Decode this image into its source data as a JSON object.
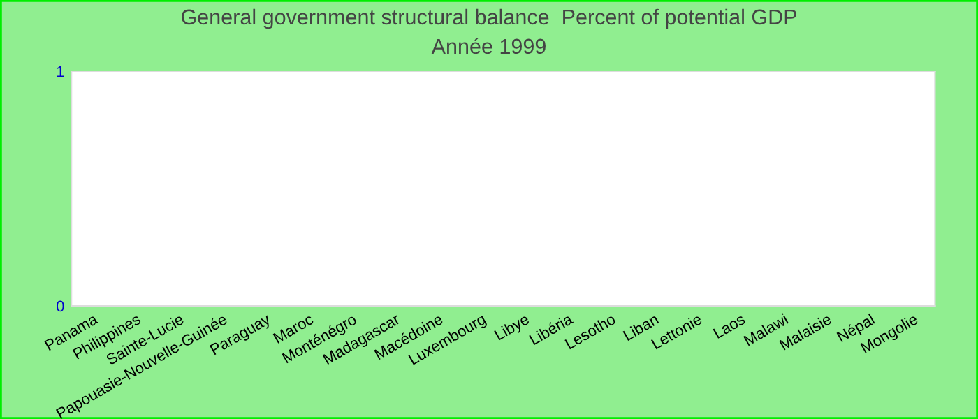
{
  "chart_data": {
    "type": "bar",
    "title": "General government structural balance  Percent of potential GDP",
    "subtitle": "Année 1999",
    "categories": [
      "Panama",
      "Philippines",
      "Sainte-Lucie",
      "Papouasie-Nouvelle-Guinée",
      "Paraguay",
      "Maroc",
      "Monténégro",
      "Madagascar",
      "Macédoine",
      "Luxembourg",
      "Libye",
      "Libéria",
      "Lesotho",
      "Liban",
      "Lettonie",
      "Laos",
      "Malawi",
      "Malaisie",
      "Népal",
      "Mongolie"
    ],
    "values": [
      null,
      null,
      null,
      null,
      null,
      null,
      null,
      null,
      null,
      null,
      null,
      null,
      null,
      null,
      null,
      null,
      null,
      null,
      null,
      null
    ],
    "ylim": [
      0,
      1
    ],
    "yticks": [
      0,
      1
    ],
    "grid": false,
    "legend": false
  }
}
